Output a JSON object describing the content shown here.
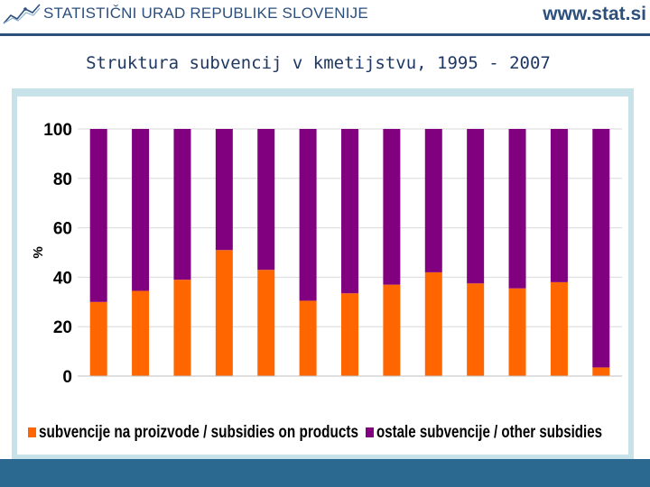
{
  "header": {
    "org_name": "STATISTIČNI URAD REPUBLIKE SLOVENIJE",
    "url": "www.stat.si",
    "logo_icon": "sursi-logo-icon",
    "brand_color": "#2d4f7c"
  },
  "page_title": "Struktura subvencij v kmetijstvu, 1995 - 2007",
  "chart_data": {
    "type": "bar",
    "stacked": true,
    "categories": [
      "",
      "",
      "",
      "",
      "",
      "",
      "",
      "",
      "",
      "",
      "",
      "",
      ""
    ],
    "series": [
      {
        "name": "subvencije na proizvode / subsidies on products",
        "color": "#ff6600",
        "values": [
          30,
          34.5,
          39,
          51,
          43,
          30.5,
          33.5,
          37,
          42,
          37.5,
          35.5,
          38,
          3.5
        ]
      },
      {
        "name": "ostale subvencije / other subsidies",
        "color": "#800080",
        "values": [
          70,
          65.5,
          61,
          49,
          57,
          69.5,
          66.5,
          63,
          58,
          62.5,
          64.5,
          62,
          96.5
        ]
      }
    ],
    "title": "",
    "xlabel": "",
    "ylabel": "%",
    "ylim": [
      0,
      100
    ],
    "yticks": [
      0,
      20,
      40,
      60,
      80,
      100
    ],
    "grid": true,
    "legend_position": "bottom"
  }
}
